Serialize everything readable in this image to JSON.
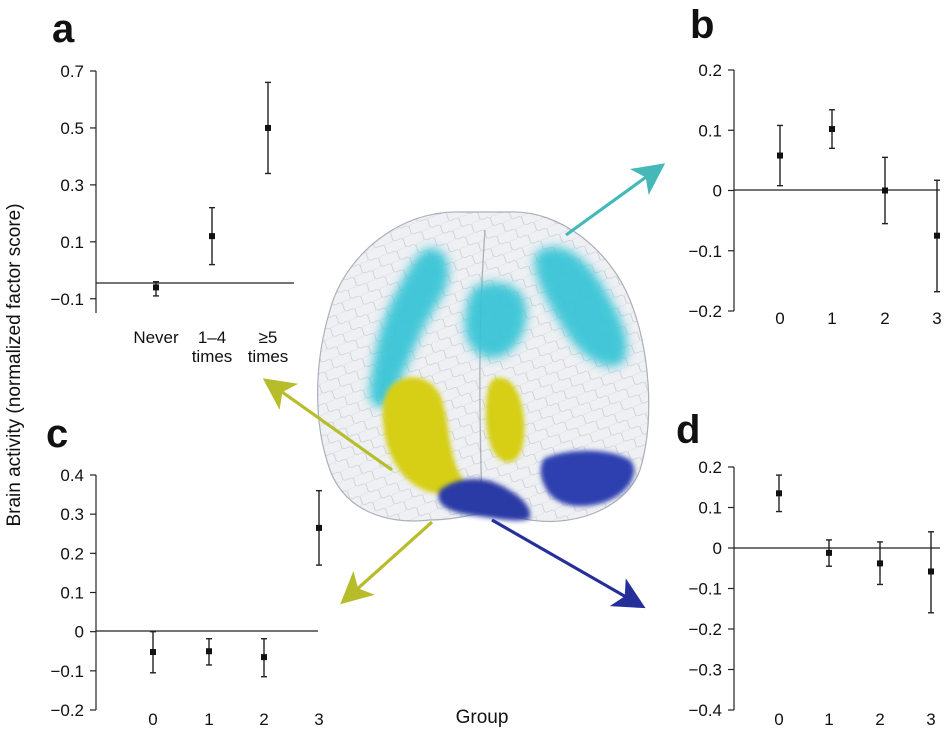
{
  "figure": {
    "ylabel": "Brain activity (normalized factor score)",
    "xlabel": "Group",
    "colors": {
      "cyan": "#4ec3cf",
      "yellow": "#d6cf12",
      "blue": "#2a3aa6",
      "olive": "#b7bd2a",
      "teal": "#45b8b8",
      "navy": "#242f9a"
    }
  },
  "chart_data": [
    {
      "panel": "a",
      "type": "scatter",
      "error_bars": true,
      "categories": [
        [
          "Never"
        ],
        [
          "1–4",
          "times"
        ],
        [
          "≥5",
          "times"
        ]
      ],
      "values": [
        -0.06,
        0.12,
        0.5
      ],
      "err_low": [
        -0.09,
        0.02,
        0.34
      ],
      "err_high": [
        -0.04,
        0.22,
        0.66
      ],
      "ylim": [
        -0.15,
        0.7
      ],
      "yticks": [
        -0.1,
        0.1,
        0.3,
        0.5,
        0.7
      ],
      "ytick_labels": [
        "−0.1",
        "0.1",
        "0.3",
        "0.5",
        "0.7"
      ],
      "baseline": 0,
      "region_color": "yellow"
    },
    {
      "panel": "b",
      "type": "scatter",
      "error_bars": true,
      "categories": [
        [
          "0"
        ],
        [
          "1"
        ],
        [
          "2"
        ],
        [
          "3"
        ]
      ],
      "values": [
        0.058,
        0.102,
        0.0,
        -0.075
      ],
      "err_low": [
        0.008,
        0.07,
        -0.055,
        -0.168
      ],
      "err_high": [
        0.108,
        0.134,
        0.055,
        0.017
      ],
      "ylim": [
        -0.2,
        0.2
      ],
      "yticks": [
        -0.2,
        -0.1,
        0,
        0.1,
        0.2
      ],
      "ytick_labels": [
        "−0.2",
        "−0.1",
        "0",
        "0.1",
        "0.2"
      ],
      "baseline": 0,
      "region_color": "cyan"
    },
    {
      "panel": "c",
      "type": "scatter",
      "error_bars": true,
      "categories": [
        [
          "0"
        ],
        [
          "1"
        ],
        [
          "2"
        ],
        [
          "3"
        ]
      ],
      "values": [
        -0.052,
        -0.05,
        -0.065,
        0.265
      ],
      "err_low": [
        -0.105,
        -0.085,
        -0.115,
        0.17
      ],
      "err_high": [
        0.0,
        -0.018,
        -0.018,
        0.36
      ],
      "ylim": [
        -0.2,
        0.4
      ],
      "yticks": [
        -0.2,
        -0.1,
        0,
        0.1,
        0.2,
        0.3,
        0.4
      ],
      "ytick_labels": [
        "−0.2",
        "−0.1",
        "0",
        "0.1",
        "0.2",
        "0.3",
        "0.4"
      ],
      "baseline": 0,
      "region_color": "olive"
    },
    {
      "panel": "d",
      "type": "scatter",
      "error_bars": true,
      "categories": [
        [
          "0"
        ],
        [
          "1"
        ],
        [
          "2"
        ],
        [
          "3"
        ]
      ],
      "values": [
        0.135,
        -0.012,
        -0.038,
        -0.058
      ],
      "err_low": [
        0.09,
        -0.045,
        -0.09,
        -0.16
      ],
      "err_high": [
        0.18,
        0.02,
        0.015,
        0.04
      ],
      "ylim": [
        -0.4,
        0.2
      ],
      "yticks": [
        -0.4,
        -0.3,
        -0.2,
        -0.1,
        0,
        0.1,
        0.2
      ],
      "ytick_labels": [
        "−0.4",
        "−0.3",
        "−0.2",
        "−0.1",
        "0",
        "0.1",
        "0.2"
      ],
      "baseline": 0,
      "region_color": "blue"
    }
  ]
}
